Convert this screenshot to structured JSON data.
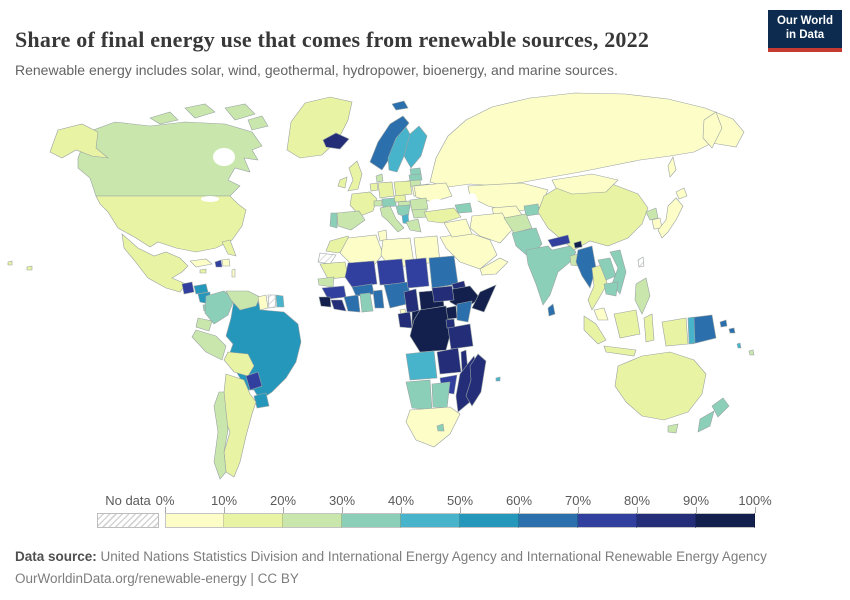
{
  "header": {
    "title": "Share of final energy use that comes from renewable sources, 2022",
    "subtitle": "Renewable energy includes solar, wind, geothermal, hydropower, bioenergy, and marine sources.",
    "logo": {
      "line1": "Our World",
      "line2": "in Data",
      "bg": "#0c2b4e",
      "accent": "#c63b31"
    }
  },
  "legend": {
    "no_data_label": "No data",
    "tick_labels": [
      "0%",
      "10%",
      "20%",
      "30%",
      "40%",
      "50%",
      "60%",
      "70%",
      "80%",
      "90%",
      "100%"
    ],
    "colors": [
      "#fdfdc8",
      "#e8f3a3",
      "#c9e7ad",
      "#8bcfb9",
      "#47b4cb",
      "#2597bb",
      "#2b6fad",
      "#31409e",
      "#242e78",
      "#13204e"
    ]
  },
  "footer": {
    "source_label": "Data source:",
    "source_text": " United Nations Statistics Division and International Energy Agency and International Renewable Energy Agency",
    "link_line": "OurWorldinData.org/renewable-energy | CC BY"
  },
  "map": {
    "ocean": "#ffffff",
    "border": "#9aa3a3"
  },
  "chart_data": {
    "type": "heatmap",
    "subtype": "world-choropleth",
    "title": "Share of final energy use that comes from renewable sources, 2022",
    "unit": "%",
    "legend_buckets": [
      "0-10%",
      "10-20%",
      "20-30%",
      "30-40%",
      "40-50%",
      "50-60%",
      "60-70%",
      "70-80%",
      "80-90%",
      "90-100%"
    ],
    "palette": [
      "#fdfdc8",
      "#e8f3a3",
      "#c9e7ad",
      "#8bcfb9",
      "#47b4cb",
      "#2597bb",
      "#2b6fad",
      "#31409e",
      "#242e78",
      "#13204e"
    ],
    "no_data_label": "No data",
    "regions": {
      "greenland": 1,
      "canada": 2,
      "canada_arctic1": 2,
      "canada_arctic2": 2,
      "canada_arctic3": 2,
      "canada_arctic4": 2,
      "alaska": 1,
      "usa": 1,
      "florida": 1,
      "mexico": 1,
      "cuba": 0,
      "haiti": 7,
      "domrep": 0,
      "jamaica": 1,
      "antilles": 0,
      "guatemala": 7,
      "honduras": 5,
      "nicaragua": 5,
      "costarica_panama": 3,
      "colombia": 3,
      "venezuela": 2,
      "guyana": 0,
      "suriname": -1,
      "frguiana": 4,
      "ecuador": 2,
      "peru": 2,
      "brazil": 5,
      "bolivia": 1,
      "paraguay": 7,
      "uruguay": 5,
      "argentina": 1,
      "chile": 2,
      "iceland": 8,
      "svalbard": 6,
      "norway": 6,
      "sweden": 4,
      "finland": 4,
      "denmark": 2,
      "uk": 1,
      "ireland": 1,
      "estonia": 3,
      "latvia": 3,
      "lithuania": 2,
      "belarus": 0,
      "poland": 1,
      "germany": 1,
      "benelux": 1,
      "france": 1,
      "spain": 2,
      "portugal": 3,
      "switzerland": 2,
      "austria": 3,
      "czech": 1,
      "hungary": 2,
      "ukraine": 0,
      "romania": 2,
      "balkans": 3,
      "italy": 2,
      "albania": 4,
      "greece": 2,
      "bulgaria": 2,
      "russia": 0,
      "kamchatka": 0,
      "sakhalin": 0,
      "kazakhstan": 0,
      "uzbek_turkmen": 0,
      "kyrgyz_tajik": 3,
      "caucasus": 3,
      "turkey": 1,
      "syria_iraq": 0,
      "iran": 0,
      "saudi": 0,
      "yemen_oman": 0,
      "afghanistan": 2,
      "pakistan": 3,
      "china": 1,
      "mongolia": 0,
      "nepal": 7,
      "bhutan": 9,
      "india": 3,
      "bangladesh": 2,
      "srilanka": 6,
      "myanmar": 6,
      "thailand": 1,
      "laos": 3,
      "vietnam": 3,
      "cambodia": 3,
      "malaysia": 0,
      "sumatra": 1,
      "java": 1,
      "borneo": 1,
      "sulawesi": 1,
      "philippines": 2,
      "taiwan": -1,
      "nkorea": 2,
      "skorea": 0,
      "japan": 0,
      "hokkaido": 0,
      "wpapua": 1,
      "png": 6,
      "png_west": 4,
      "solomon1": 6,
      "solomon2": 6,
      "fiji": 2,
      "vanuatu": 4,
      "morocco": 1,
      "wsahara": -1,
      "algeria": 0,
      "tunisia": 0,
      "libya": 0,
      "egypt": 0,
      "mauritania": 1,
      "senegal": 2,
      "guinea": 7,
      "sierraleone": 9,
      "liberia": 8,
      "mali": 7,
      "burkina": 6,
      "civ": 6,
      "ghana": 3,
      "togobenin": 6,
      "niger": 7,
      "nigeria": 6,
      "chad": 7,
      "sudan": 6,
      "eritrea": 8,
      "ethiopia": 9,
      "somalia": 9,
      "camer": 8,
      "car": 9,
      "ssudan": 8,
      "eqguinea": 0,
      "gabon": 8,
      "congo": 9,
      "drc": 9,
      "uganda": 9,
      "kenya": 6,
      "rwanda_burundi": 8,
      "tanzania": 8,
      "angola": 4,
      "zambia": 8,
      "malawi": 8,
      "mozambique": 8,
      "zimbabwe": 7,
      "namibia": 3,
      "botswana": 3,
      "south_africa": 0,
      "lesotho": 3,
      "madagascar": 8,
      "australia": 1,
      "tasmania": 2,
      "nz_north": 3,
      "nz_south": 3,
      "hawaii1": 1,
      "hawaii2": 1,
      "mauritius": 4
    }
  }
}
